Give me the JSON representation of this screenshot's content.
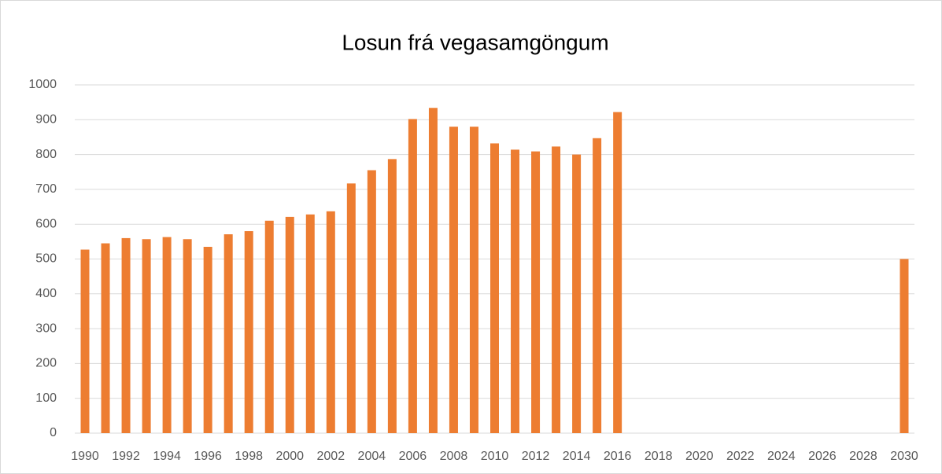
{
  "chart_data": {
    "type": "bar",
    "title": "Losun frá vegasamgöngum",
    "categories": [
      "1990",
      null,
      "1992",
      null,
      "1994",
      null,
      "1996",
      null,
      "1998",
      null,
      "2000",
      null,
      "2002",
      null,
      "2004",
      null,
      "2006",
      null,
      "2008",
      null,
      "2010",
      null,
      "2012",
      null,
      "2014",
      null,
      "2016",
      null,
      "2018",
      null,
      "2020",
      null,
      "2022",
      null,
      "2024",
      null,
      "2026",
      null,
      "2028",
      null,
      "2030"
    ],
    "values": [
      527,
      545,
      560,
      557,
      563,
      557,
      535,
      571,
      580,
      610,
      621,
      628,
      637,
      717,
      755,
      787,
      902,
      934,
      880,
      880,
      832,
      814,
      809,
      823,
      800,
      847,
      922,
      null,
      null,
      null,
      null,
      null,
      null,
      null,
      null,
      null,
      null,
      null,
      null,
      null,
      500
    ],
    "color": "#ed7d31",
    "ylim": [
      0,
      1000
    ],
    "yticks": [
      0,
      100,
      200,
      300,
      400,
      500,
      600,
      700,
      800,
      900,
      1000
    ],
    "grid": true
  }
}
